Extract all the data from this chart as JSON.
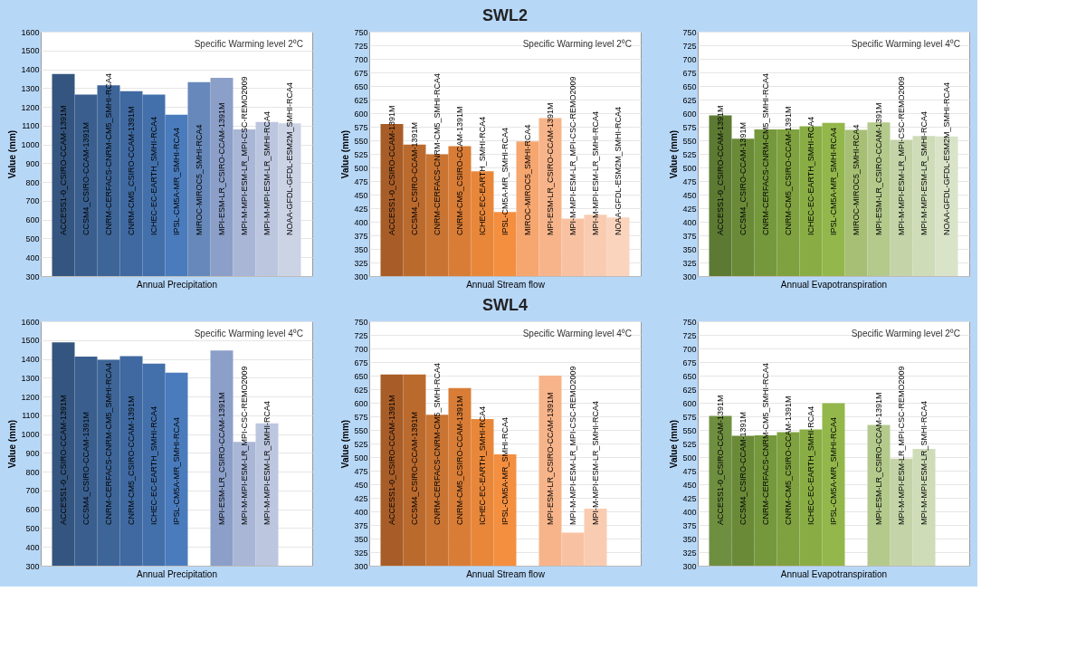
{
  "chart_data": [
    {
      "type": "bar",
      "xlabel": "Annual Precipitation",
      "ylabel": "Value (mm)",
      "annotations": [
        "Specific Warming level 2⁰C"
      ],
      "ylim": [
        300,
        1600
      ],
      "yticks": [
        300,
        400,
        500,
        600,
        700,
        800,
        900,
        1000,
        1100,
        1200,
        1300,
        1400,
        1500,
        1600
      ],
      "grid": "y",
      "categories": [
        "ACCESS1-0_CSIRO-CCAM-1391M",
        "CCSM4_CSIRO-CCAM-1391M",
        "CNRM-CERFACS-CNRM-CM5_SMHI-RCA4",
        "CNRM-CM5_CSIRO-CCAM-1391M",
        "ICHEC-EC-EARTH_SMHI-RCA4",
        "IPSL-CM5A-MR_SMHI-RCA4",
        "MIROC-MIROC5_SMHI-RCA4",
        "MPI-ESM-LR_CSIRO-CCAM-1391M",
        "MPI-M-MPI-ESM-LR_MPI-CSC-REMO2009",
        "MPI-M-MPI-ESM-LR_SMHI-RCA4",
        "NOAA-GFDL-GFDL-ESM2M_SMHI-RCA4"
      ],
      "values": [
        1375,
        1265,
        1315,
        1283,
        1265,
        1158,
        1332,
        1355,
        1080,
        1120,
        1113
      ],
      "colors": [
        "#34557f",
        "#3a5f8f",
        "#3d6598",
        "#3f69a0",
        "#4370ab",
        "#4a7cbd",
        "#6688bb",
        "#8b9fc8",
        "#a9b6d6",
        "#bcc6df",
        "#cbd3e5"
      ]
    },
    {
      "type": "bar",
      "title": "SWL2",
      "xlabel": "Annual Stream flow",
      "ylabel": "Value (mm)",
      "annotations": [
        "Specific Warming level 2⁰C"
      ],
      "ylim": [
        300,
        750
      ],
      "yticks": [
        300,
        325,
        350,
        375,
        400,
        425,
        450,
        475,
        500,
        525,
        550,
        575,
        600,
        625,
        650,
        675,
        700,
        725,
        750
      ],
      "grid": "y",
      "categories": [
        "ACCESS1-0_CSIRO-CCAM-1391M",
        "CCSM4_CSIRO-CCAM-1391M",
        "CNRM-CERFACS-CNRM-CM5_SMHI-RCA4",
        "CNRM-CM5_CSIRO-CCAM-1391M",
        "ICHEC-EC-EARTH_SMHI-RCA4",
        "IPSL-CM5A-MR_SMHI-RCA4",
        "MIROC-MIROC5_SMHI-RCA4",
        "MPI-ESM-LR_CSIRO-CCAM-1391M",
        "MPI-M-MPI-ESM-LR_MPI-CSC-REMO2009",
        "MPI-M-MPI-ESM-LR_SMHI-RCA4",
        "NOAA-GFDL-ESM2M_SMHI-RCA4"
      ],
      "values": [
        580,
        542,
        524,
        539,
        493,
        418,
        548,
        591,
        406,
        413,
        408
      ],
      "colors": [
        "#a85d28",
        "#bb6a2e",
        "#c97432",
        "#d97d36",
        "#e8873a",
        "#f48f40",
        "#f6a66f",
        "#f7b48a",
        "#f8c2a2",
        "#f9ccb1",
        "#fad4bd"
      ]
    },
    {
      "type": "bar",
      "xlabel": "Annual Evapotranspiration",
      "ylabel": "Value (mm)",
      "annotations": [
        "Specific Warming level 4⁰C"
      ],
      "ylim": [
        300,
        750
      ],
      "yticks": [
        300,
        325,
        350,
        375,
        400,
        425,
        450,
        475,
        500,
        525,
        550,
        575,
        600,
        625,
        650,
        675,
        700,
        725,
        750
      ],
      "grid": "y",
      "categories": [
        "ACCESS1-0_CSIRO-CCAM-1391M",
        "CCSM4_CSIRO-CCAM-1391M",
        "CNRM-CERFACS-CNRM-CM5_SMHI-RCA4",
        "CNRM-CM5_CSIRO-CCAM-1391M",
        "ICHEC-EC-EARTH_SMHI-RCA4",
        "IPSL-CM5A-MR_SMHI-RCA4",
        "MIROC-MIROC5_SMHI-RCA4",
        "MPI-ESM-LR_CSIRO-CCAM-1391M",
        "MPI-M-MPI-ESM-LR_MPI-CSC-REMO2009",
        "MPI-M-MPI-ESM-LR_SMHI-RCA4",
        "NOAA-GFDL-GFDL-ESM2M_SMHI-RCA4"
      ],
      "values": [
        596,
        553,
        570,
        570,
        576,
        582,
        569,
        583,
        551,
        558,
        557
      ],
      "colors": [
        "#5d7a33",
        "#6a8a38",
        "#75983c",
        "#7fa13f",
        "#89ad44",
        "#93b74b",
        "#a6bf74",
        "#b4ca8c",
        "#c4d4a8",
        "#cfdcb8",
        "#d9e3c8"
      ]
    },
    {
      "type": "bar",
      "xlabel": "Annual Precipitation",
      "ylabel": "Value (mm)",
      "annotations": [
        "Specific Warming level 4⁰C"
      ],
      "ylim": [
        300,
        1600
      ],
      "yticks": [
        300,
        400,
        500,
        600,
        700,
        800,
        900,
        1000,
        1100,
        1200,
        1300,
        1400,
        1500,
        1600
      ],
      "grid": "y",
      "categories": [
        "ACCESS1-0_CSIRO-CCAM-1391M",
        "CCSM4_CSIRO-CCAM-1391M",
        "CNRM-CERFACS-CNRM-CM5_SMHI-RCA4",
        "CNRM-CM5_CSIRO-CCAM-1391M",
        "ICHEC-EC-EARTH_SMHI-RCA4",
        "IPSL-CM5A-MR_SMHI-RCA4",
        null,
        "MPI-ESM-LR_CSIRO-CCAM-1391M",
        "MPI-M-MPI-ESM-LR_MPI-CSC-REMO2009",
        "MPI-M-MPI-ESM-LR_SMHI-RCA4",
        null
      ],
      "values": [
        1488,
        1412,
        1395,
        1415,
        1375,
        1327,
        null,
        1445,
        958,
        1057,
        null
      ],
      "colors": [
        "#34557f",
        "#3a5f8f",
        "#3d6598",
        "#3f69a0",
        "#4370ab",
        "#4a7cbd",
        "#6688bb",
        "#8b9fc8",
        "#a9b6d6",
        "#bcc6df",
        "#cbd3e5"
      ]
    },
    {
      "type": "bar",
      "title": "SWL4",
      "xlabel": "Annual Stream flow",
      "ylabel": "Value (mm)",
      "annotations": [
        "Specific Warming level 4⁰C"
      ],
      "ylim": [
        300,
        750
      ],
      "yticks": [
        300,
        325,
        350,
        375,
        400,
        425,
        450,
        475,
        500,
        525,
        550,
        575,
        600,
        625,
        650,
        675,
        700,
        725,
        750
      ],
      "grid": "y",
      "categories": [
        "ACCESS1-0_CSIRO-CCAM-1391M",
        "CCSM4_CSIRO-CCAM-1391M",
        "CNRM-CERFACS-CNRM-CM5_SMHI-RCA4",
        "CNRM-CM5_CSIRO-CCAM-1391M",
        "ICHEC-EC-EARTH_SMHI-RCA4",
        "IPSL-CM5A-MR_SMHI-RCA4",
        null,
        "MPI-ESM-LR_CSIRO-CCAM-1391M",
        "MPI-M-MPI-ESM-LR_MPI-CSC-REMO2009",
        "MPI-M-MPI-ESM-LR_SMHI-RCA4",
        null
      ],
      "values": [
        652,
        652,
        578,
        627,
        570,
        505,
        null,
        650,
        361,
        405,
        null
      ],
      "colors": [
        "#a85d28",
        "#bb6a2e",
        "#c97432",
        "#d97d36",
        "#e8873a",
        "#f48f40",
        "#f6a66f",
        "#f7b48a",
        "#f8c2a2",
        "#f9ccb1",
        "#fad4bd"
      ]
    },
    {
      "type": "bar",
      "xlabel": "Annual Evapotranspiration",
      "ylabel": "Value (mm)",
      "annotations": [
        "Specific Warming level 2⁰C"
      ],
      "ylim": [
        300,
        750
      ],
      "yticks": [
        300,
        325,
        350,
        375,
        400,
        425,
        450,
        475,
        500,
        525,
        550,
        575,
        600,
        625,
        650,
        675,
        700,
        725,
        750
      ],
      "grid": "y",
      "categories": [
        "ACCESS1-0_CSIRO-CCAM-1391M",
        "CCSM4_CSIRO-CCAM-1391M",
        "CNRM-CERFACS-CNRM-CM5_SMHI-RCA4",
        "CNRM-CM5_CSIRO-CCAM-1391M",
        "ICHEC-EC-EARTH_SMHI-RCA4",
        "IPSL-CM5A-MR_SMHI-RCA4",
        null,
        "MPI-ESM-LR_CSIRO-CCAM-1391M",
        "MPI-M-MPI-ESM-LR_MPI-CSC-REMO2009",
        "MPI-M-MPI-ESM-LR_SMHI-RCA4",
        null
      ],
      "values": [
        576,
        539,
        540,
        546,
        551,
        599,
        null,
        559,
        497,
        515,
        null
      ],
      "colors": [
        "#6f8f40",
        "#6a8a38",
        "#75983c",
        "#7fa13f",
        "#89ad44",
        "#93b74b",
        "#a6bf74",
        "#b4ca8c",
        "#c4d4a8",
        "#cfdcb8",
        "#d9e3c8"
      ]
    }
  ]
}
